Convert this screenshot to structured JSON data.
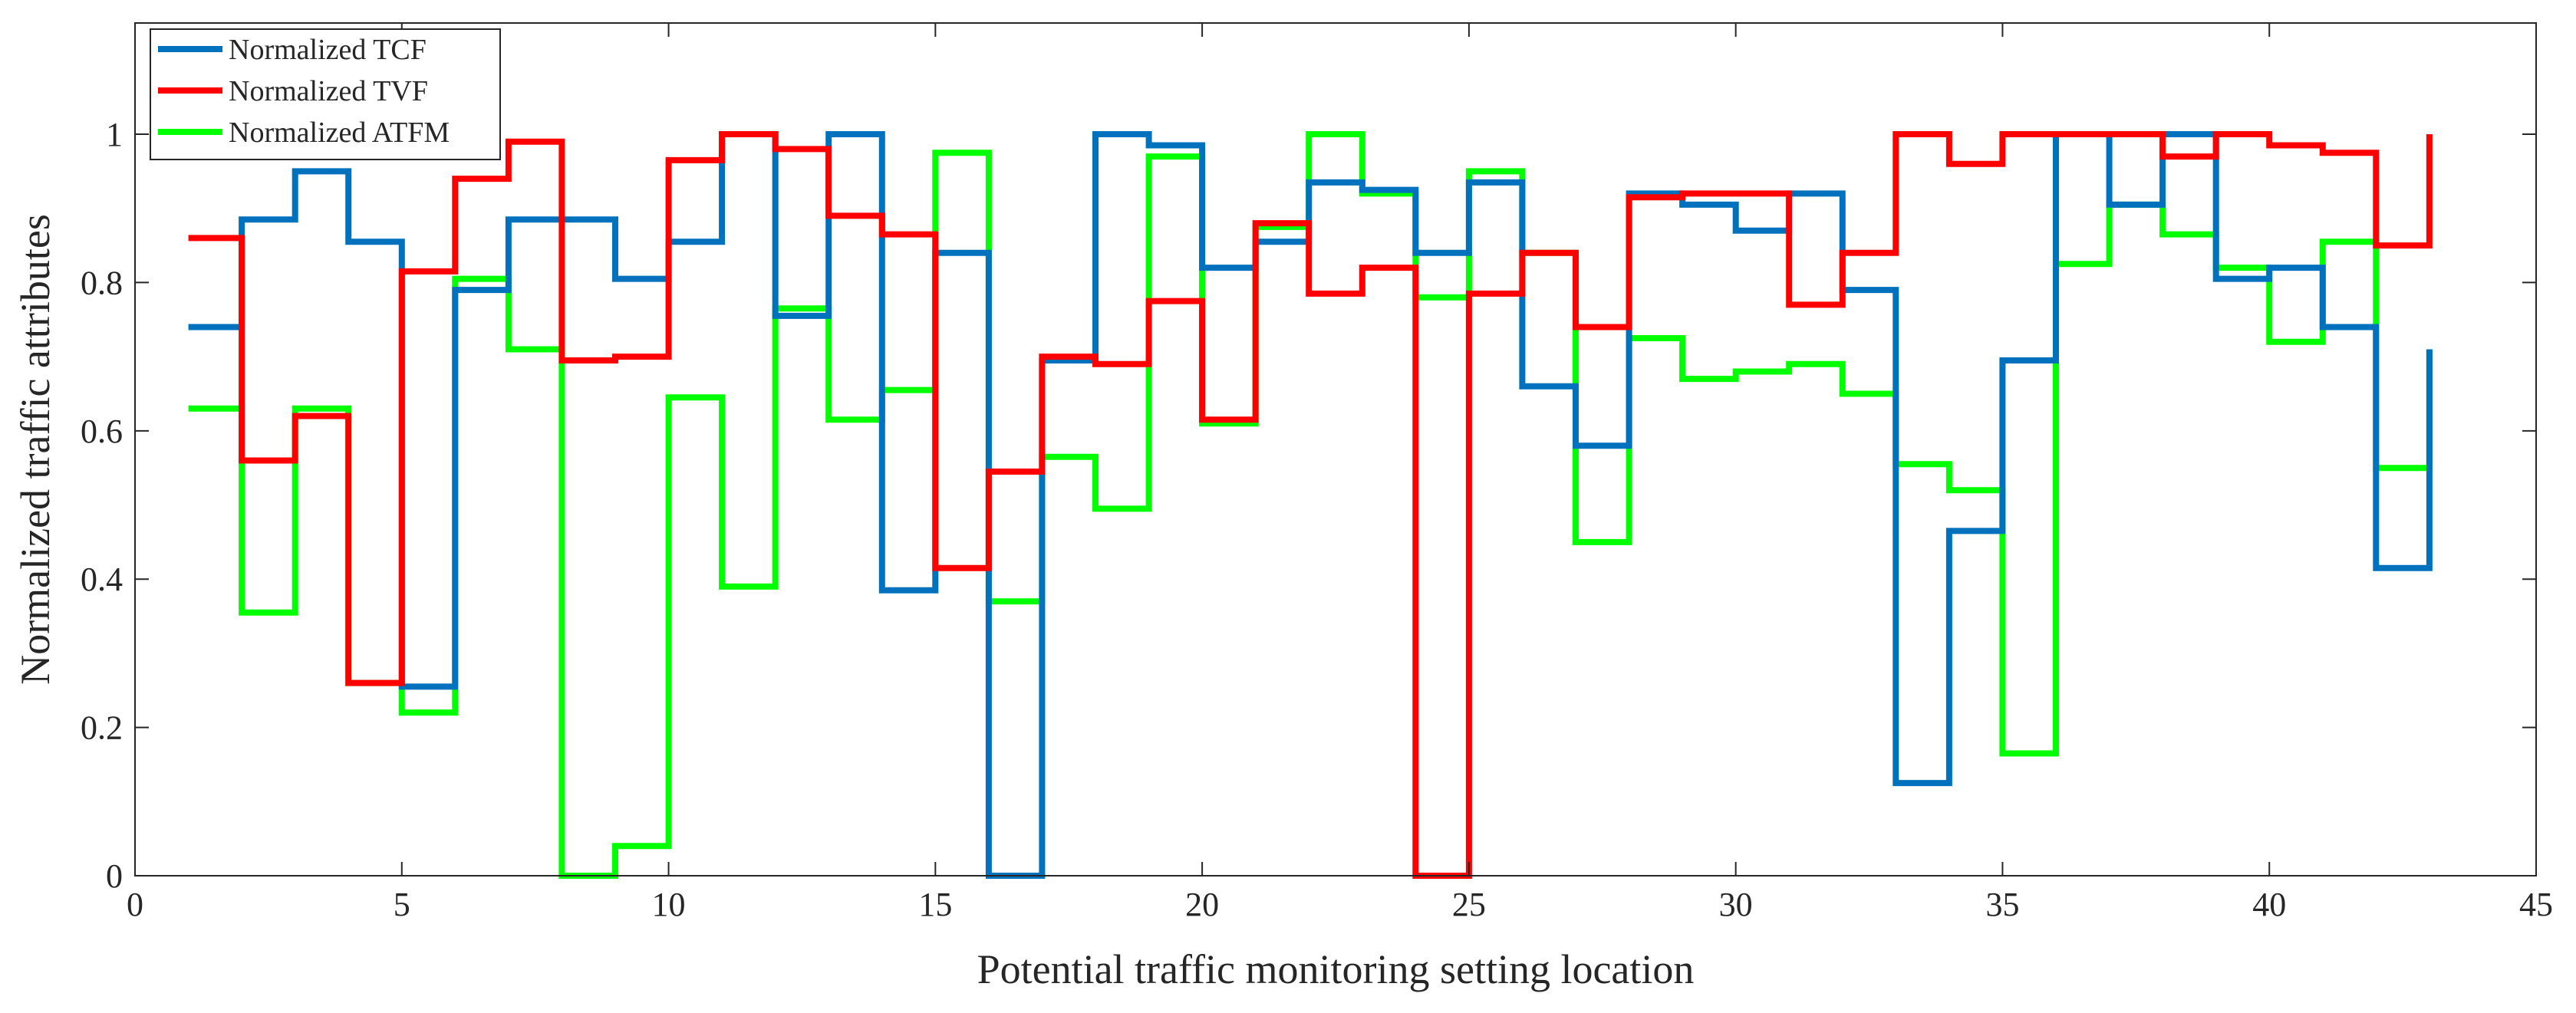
{
  "chart_data": {
    "type": "line",
    "step": "post",
    "title": "",
    "xlabel": "Potential traffic monitoring setting location",
    "ylabel": "Normalized traffic attributes",
    "xlim": [
      0,
      45
    ],
    "ylim": [
      0,
      1.15
    ],
    "xticks": [
      0,
      5,
      10,
      15,
      20,
      25,
      30,
      35,
      40,
      45
    ],
    "yticks": [
      0,
      0.2,
      0.4,
      0.6,
      0.8,
      1
    ],
    "ytick_labels": [
      "0",
      "0.2",
      "0.4",
      "0.6",
      "0.8",
      "1"
    ],
    "grid": false,
    "legend_position": "top-left",
    "x": [
      1,
      2,
      3,
      4,
      5,
      6,
      7,
      8,
      9,
      10,
      11,
      12,
      13,
      14,
      15,
      16,
      17,
      18,
      19,
      20,
      21,
      22,
      23,
      24,
      25,
      26,
      27,
      28,
      29,
      30,
      31,
      32,
      33,
      34,
      35,
      36,
      37,
      38,
      39,
      40,
      41,
      42,
      43
    ],
    "series": [
      {
        "name": "Normalized TCF",
        "color": "#0072BD",
        "values": [
          0.74,
          0.885,
          0.95,
          0.855,
          0.255,
          0.79,
          0.885,
          0.885,
          0.805,
          0.855,
          1.0,
          0.755,
          1.0,
          0.385,
          0.84,
          0.0,
          0.695,
          1.0,
          0.985,
          0.82,
          0.855,
          0.935,
          0.925,
          0.84,
          0.935,
          0.66,
          0.58,
          0.92,
          0.905,
          0.87,
          0.92,
          0.79,
          0.125,
          0.465,
          0.695,
          1.0,
          0.905,
          1.0,
          0.805,
          0.82,
          0.74,
          0.415,
          0.71
        ]
      },
      {
        "name": "Normalized TVF",
        "color": "#FF0000",
        "values": [
          0.86,
          0.56,
          0.62,
          0.26,
          0.815,
          0.94,
          0.99,
          0.695,
          0.7,
          0.965,
          1.0,
          0.98,
          0.89,
          0.865,
          0.415,
          0.545,
          0.7,
          0.69,
          0.775,
          0.615,
          0.88,
          0.785,
          0.82,
          0.0,
          0.785,
          0.84,
          0.74,
          0.915,
          0.92,
          0.92,
          0.77,
          0.84,
          1.0,
          0.96,
          1.0,
          1.0,
          1.0,
          0.97,
          1.0,
          0.985,
          0.975,
          0.85,
          1.0
        ]
      },
      {
        "name": "Normalized ATFM",
        "color": "#00FF00",
        "values": [
          0.63,
          0.355,
          0.63,
          0.26,
          0.22,
          0.805,
          0.71,
          0.0,
          0.04,
          0.645,
          0.39,
          0.765,
          0.615,
          0.655,
          0.975,
          0.37,
          0.565,
          0.495,
          0.97,
          0.61,
          0.875,
          1.0,
          0.92,
          0.78,
          0.95,
          0.84,
          0.45,
          0.725,
          0.67,
          0.68,
          0.69,
          0.65,
          0.555,
          0.52,
          0.165,
          0.825,
          0.905,
          0.865,
          0.82,
          0.72,
          0.855,
          0.55,
          0.71
        ]
      }
    ]
  }
}
